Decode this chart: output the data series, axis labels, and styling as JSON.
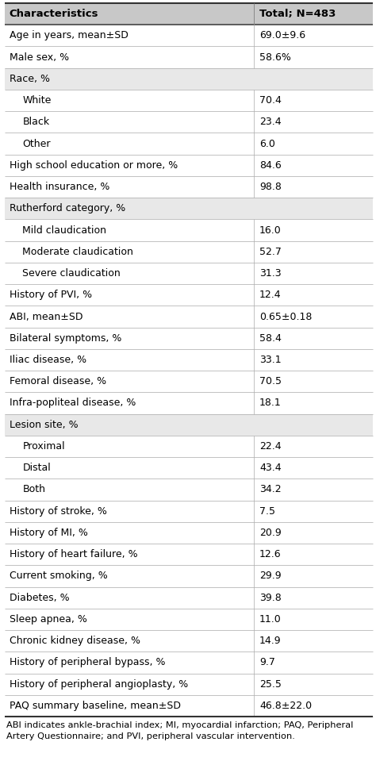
{
  "header": [
    "Characteristics",
    "Total; N=483"
  ],
  "rows": [
    {
      "label": "Age in years, mean±SD",
      "value": "69.0±9.6",
      "indent": 0,
      "shaded": false
    },
    {
      "label": "Male sex, %",
      "value": "58.6%",
      "indent": 0,
      "shaded": false
    },
    {
      "label": "Race, %",
      "value": "",
      "indent": 0,
      "shaded": true
    },
    {
      "label": "White",
      "value": "70.4",
      "indent": 1,
      "shaded": false
    },
    {
      "label": "Black",
      "value": "23.4",
      "indent": 1,
      "shaded": false
    },
    {
      "label": "Other",
      "value": "6.0",
      "indent": 1,
      "shaded": false
    },
    {
      "label": "High school education or more, %",
      "value": "84.6",
      "indent": 0,
      "shaded": false
    },
    {
      "label": "Health insurance, %",
      "value": "98.8",
      "indent": 0,
      "shaded": false
    },
    {
      "label": "Rutherford category, %",
      "value": "",
      "indent": 0,
      "shaded": true
    },
    {
      "label": "Mild claudication",
      "value": "16.0",
      "indent": 1,
      "shaded": false
    },
    {
      "label": "Moderate claudication",
      "value": "52.7",
      "indent": 1,
      "shaded": false
    },
    {
      "label": "Severe claudication",
      "value": "31.3",
      "indent": 1,
      "shaded": false
    },
    {
      "label": "History of PVI, %",
      "value": "12.4",
      "indent": 0,
      "shaded": false
    },
    {
      "label": "ABI, mean±SD",
      "value": "0.65±0.18",
      "indent": 0,
      "shaded": false
    },
    {
      "label": "Bilateral symptoms, %",
      "value": "58.4",
      "indent": 0,
      "shaded": false
    },
    {
      "label": "Iliac disease, %",
      "value": "33.1",
      "indent": 0,
      "shaded": false
    },
    {
      "label": "Femoral disease, %",
      "value": "70.5",
      "indent": 0,
      "shaded": false
    },
    {
      "label": "Infra-popliteal disease, %",
      "value": "18.1",
      "indent": 0,
      "shaded": false
    },
    {
      "label": "Lesion site, %",
      "value": "",
      "indent": 0,
      "shaded": true
    },
    {
      "label": "Proximal",
      "value": "22.4",
      "indent": 1,
      "shaded": false
    },
    {
      "label": "Distal",
      "value": "43.4",
      "indent": 1,
      "shaded": false
    },
    {
      "label": "Both",
      "value": "34.2",
      "indent": 1,
      "shaded": false
    },
    {
      "label": "History of stroke, %",
      "value": "7.5",
      "indent": 0,
      "shaded": false
    },
    {
      "label": "History of MI, %",
      "value": "20.9",
      "indent": 0,
      "shaded": false
    },
    {
      "label": "History of heart failure, %",
      "value": "12.6",
      "indent": 0,
      "shaded": false
    },
    {
      "label": "Current smoking, %",
      "value": "29.9",
      "indent": 0,
      "shaded": false
    },
    {
      "label": "Diabetes, %",
      "value": "39.8",
      "indent": 0,
      "shaded": false
    },
    {
      "label": "Sleep apnea, %",
      "value": "11.0",
      "indent": 0,
      "shaded": false
    },
    {
      "label": "Chronic kidney disease, %",
      "value": "14.9",
      "indent": 0,
      "shaded": false
    },
    {
      "label": "History of peripheral bypass, %",
      "value": "9.7",
      "indent": 0,
      "shaded": false
    },
    {
      "label": "History of peripheral angioplasty, %",
      "value": "25.5",
      "indent": 0,
      "shaded": false
    },
    {
      "label": "PAQ summary baseline, mean±SD",
      "value": "46.8±22.0",
      "indent": 0,
      "shaded": false
    }
  ],
  "footnote": "ABI indicates ankle-brachial index; MI, myocardial infarction; PAQ, Peripheral\nArtery Questionnaire; and PVI, peripheral vascular intervention.",
  "header_bg": "#c8c8c8",
  "shaded_bg": "#e8e8e8",
  "white_bg": "#ffffff",
  "header_font_size": 9.5,
  "body_font_size": 9.0,
  "footnote_font_size": 8.2,
  "col_split": 0.675,
  "indent_amount": 0.035
}
